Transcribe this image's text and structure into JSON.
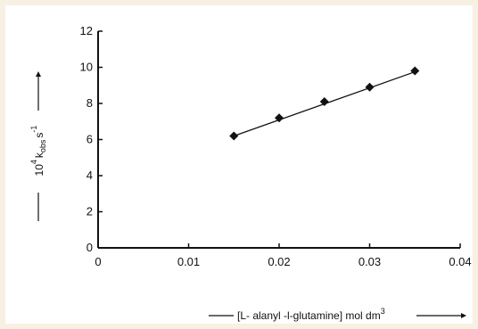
{
  "chart_data": {
    "type": "scatter",
    "title": "",
    "ylabel": {
      "prefix": "10",
      "prefix_sup": "4",
      "k": "k",
      "sub": "obs",
      "unit": "s",
      "unit_sup": "-1"
    },
    "xlabel": {
      "text": "[L- alanyl -l-glutamine] mol dm",
      "sup": "3"
    },
    "xlim": [
      0,
      0.04
    ],
    "ylim": [
      0,
      12
    ],
    "x_ticks": [
      0,
      0.01,
      0.02,
      0.03,
      0.04
    ],
    "x_tick_labels": [
      "0",
      "0.01",
      "0.02",
      "0.03",
      "0.04"
    ],
    "y_ticks": [
      0,
      2,
      4,
      6,
      8,
      10,
      12
    ],
    "y_tick_labels": [
      "0",
      "2",
      "4",
      "6",
      "8",
      "10",
      "12"
    ],
    "series": [
      {
        "x": [
          0.015,
          0.02,
          0.025,
          0.03,
          0.035
        ],
        "y": [
          6.2,
          7.2,
          8.1,
          8.9,
          9.8
        ]
      }
    ],
    "fit_line": {
      "x": [
        0.015,
        0.035
      ],
      "y": [
        6.2,
        9.75
      ]
    },
    "grid": false,
    "marker": "diamond",
    "color": "#111111"
  }
}
